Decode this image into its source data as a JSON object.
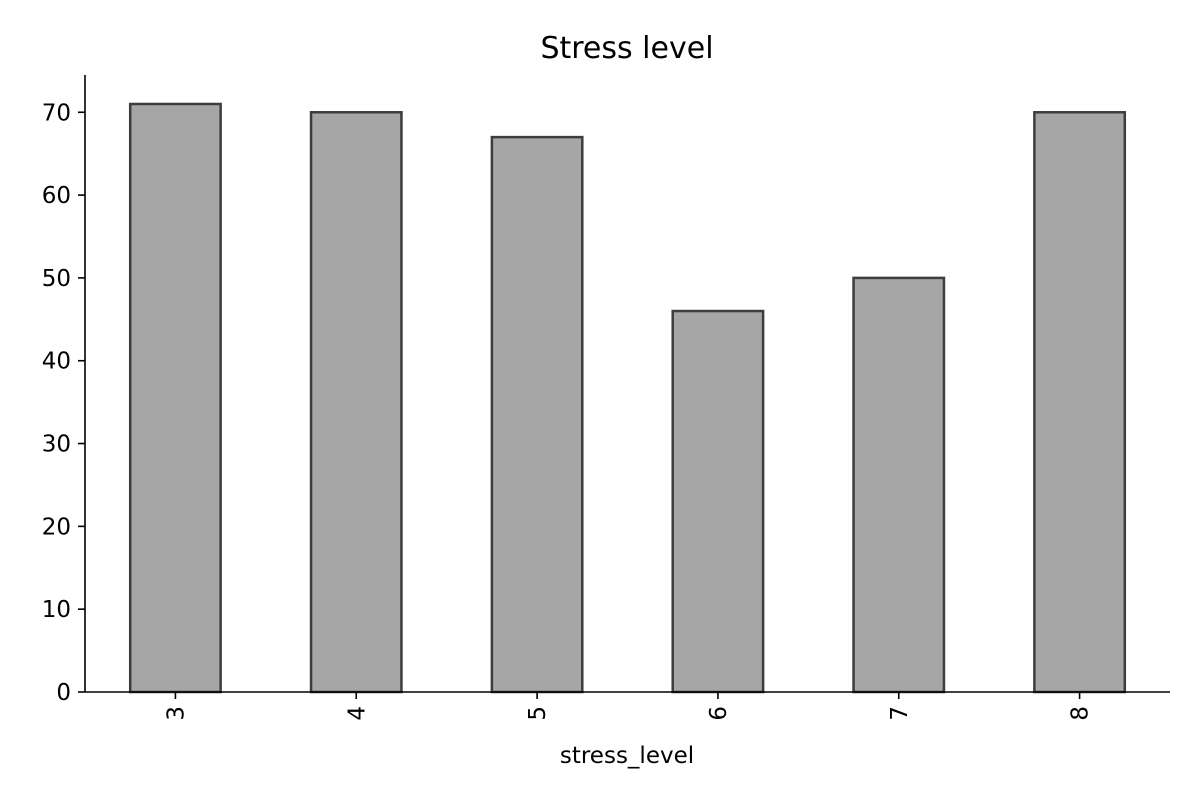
{
  "chart_data": {
    "type": "bar",
    "title": "Stress level",
    "xlabel": "stress_level",
    "ylabel": "",
    "categories": [
      "3",
      "4",
      "5",
      "6",
      "7",
      "8"
    ],
    "values": [
      71,
      70,
      67,
      46,
      50,
      70
    ],
    "ylim": [
      0,
      74.5
    ],
    "yticks": [
      0,
      10,
      20,
      30,
      40,
      50,
      60,
      70
    ],
    "xtick_rotation": 90,
    "grid": false,
    "legend": "none",
    "colors": {
      "bar_fill": "#a6a6a6",
      "bar_edge": "#3d3d3d",
      "axis": "#000000",
      "text": "#000000",
      "background": "#ffffff"
    }
  }
}
